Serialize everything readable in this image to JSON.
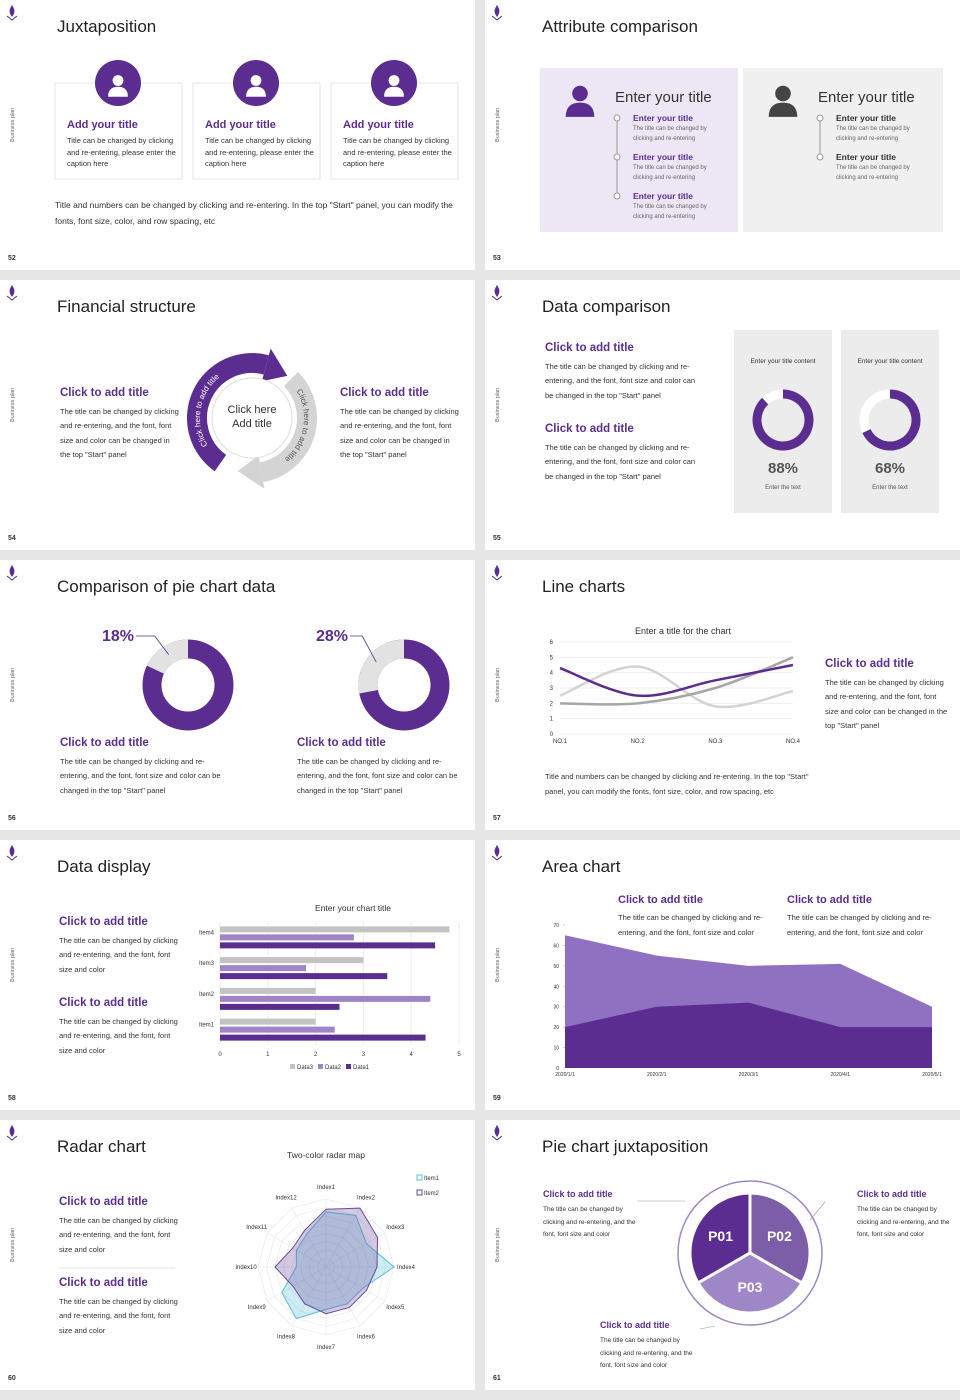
{
  "side_label": "Business plan",
  "slides": [
    {
      "number": "52",
      "title": "Juxtaposition",
      "cards": [
        {
          "title": "Add your title",
          "text": "Title can be changed by clicking and re-entering, please enter the caption here"
        },
        {
          "title": "Add your title",
          "text": "Title can be changed by clicking and re-entering, please enter the caption here"
        },
        {
          "title": "Add your title",
          "text": "Title can be changed by clicking and re-entering, please enter the caption here"
        }
      ],
      "caption": "Title and numbers can be changed by clicking and re-entering. In the top \"Start\" panel, you can modify the fonts, font size, color, and row spacing, etc"
    },
    {
      "number": "53",
      "title": "Attribute comparison",
      "panels": [
        {
          "heading": "Enter your title",
          "items": [
            {
              "title": "Enter your title",
              "text": "The title can be changed by clicking and re-entering"
            },
            {
              "title": "Enter your title",
              "text": "The title can be changed by clicking and re-entering"
            },
            {
              "title": "Enter your title",
              "text": "The title can be changed by clicking and re-entering"
            }
          ]
        },
        {
          "heading": "Enter your title",
          "items": [
            {
              "title": "Enter your title",
              "text": "The title can be changed by clicking and re-entering"
            },
            {
              "title": "Enter your title",
              "text": "The title can be changed by clicking and re-entering"
            }
          ]
        }
      ]
    },
    {
      "number": "54",
      "title": "Financial structure",
      "left": {
        "title": "Click to add title",
        "text": "The title can be changed by clicking and re-entering, and the font, font size and color can be changed in the top \"Start\" panel"
      },
      "right": {
        "title": "Click to add title",
        "text": "The title can be changed by clicking and re-entering, and the font, font size and color can be changed in the top \"Start\" panel"
      },
      "center": [
        "Click here",
        "Add title"
      ],
      "arrow_labels": [
        "Click here to add title",
        "Click here to add title"
      ]
    },
    {
      "number": "55",
      "title": "Data comparison",
      "blocks": [
        {
          "title": "Click to add title",
          "text": "The title can be changed by clicking and re-entering, and the font, font size and color can be changed in the top \"Start\" panel"
        },
        {
          "title": "Click to add title",
          "text": "The title can be changed by clicking and re-entering, and the font, font size and color can be changed in the top \"Start\" panel"
        }
      ],
      "cards": [
        {
          "heading": "Enter your title content",
          "value": 88,
          "value_label": "88%",
          "caption": "Enter the text"
        },
        {
          "heading": "Enter your title content",
          "value": 68,
          "value_label": "68%",
          "caption": "Enter the text"
        }
      ]
    },
    {
      "number": "56",
      "title": "Comparison of pie chart data",
      "pies": [
        {
          "value": 18,
          "value_label": "18%",
          "title": "Click to add title",
          "text": "The title can be changed by clicking and re-entering, and the font, font size and color can be changed in the top \"Start\" panel"
        },
        {
          "value": 28,
          "value_label": "28%",
          "title": "Click to add title",
          "text": "The title can be changed by clicking and re-entering, and the font, font size and color can be changed in the top \"Start\" panel"
        }
      ]
    },
    {
      "number": "57",
      "title": "Line charts",
      "chart": {
        "type": "line",
        "title": "Enter a title for the chart",
        "categories": [
          "NO.1",
          "NO.2",
          "NO.3",
          "NO.4"
        ],
        "series": [
          {
            "color": "#d3d3d3",
            "values": [
              2.5,
              4.4,
              1.8,
              2.8
            ]
          },
          {
            "color": "#a6a6a6",
            "values": [
              2,
              2,
              3,
              5
            ]
          },
          {
            "color": "#5b2d90",
            "values": [
              4.3,
              2.5,
              3.5,
              4.5
            ]
          }
        ],
        "ylim": [
          0,
          6
        ],
        "yticks": [
          0,
          1,
          2,
          3,
          4,
          5,
          6
        ],
        "grid": true
      },
      "block": {
        "title": "Click to add title",
        "text": "The title can be changed by clicking and re-entering, and the font, font size and color can be changed in the top \"Start\" panel"
      },
      "caption": "Title and numbers can be changed by clicking and re-entering. In the top \"Start\" panel, you can modify the fonts, font size, color, and row spacing, etc"
    },
    {
      "number": "58",
      "title": "Data display",
      "blocks": [
        {
          "title": "Click to add title",
          "text": "The title can be changed by clicking and re-entering, and the font, font size and color"
        },
        {
          "title": "Click to add title",
          "text": "The title can be changed by clicking and re-entering, and the font, font size and color"
        }
      ],
      "chart": {
        "type": "hbar",
        "title": "Enter your chart title",
        "categories": [
          "Item1",
          "Item2",
          "Item3",
          "Item4"
        ],
        "series": [
          {
            "name": "Data3",
            "color": "#c3c3c3",
            "values": [
              2,
              2,
              3,
              4.8
            ]
          },
          {
            "name": "Data2",
            "color": "#a084c8",
            "values": [
              2.4,
              4.4,
              1.8,
              2.8
            ]
          },
          {
            "name": "Data1",
            "color": "#5b2d90",
            "values": [
              4.3,
              2.5,
              3.5,
              4.5
            ]
          }
        ],
        "xlim": [
          0,
          5
        ],
        "xticks": [
          0,
          1,
          2,
          3,
          4,
          5
        ],
        "grid": true,
        "legend": "bottom"
      }
    },
    {
      "number": "59",
      "title": "Area chart",
      "blocks": [
        {
          "title": "Click to add title",
          "text": "The title can be changed by clicking and re-entering, and the font, font size and color"
        },
        {
          "title": "Click to add title",
          "text": "The title can be changed by clicking and re-entering, and the font, font size and color"
        }
      ],
      "chart": {
        "type": "area",
        "categories": [
          "2020/1/1",
          "2020/2/1",
          "2020/3/1",
          "2020/4/1",
          "2020/5/1"
        ],
        "series": [
          {
            "color": "#9070c0",
            "values": [
              65,
              55,
              50,
              51,
              30
            ]
          },
          {
            "color": "#5b2d90",
            "values": [
              20,
              30,
              32,
              20,
              20
            ]
          }
        ],
        "ylim": [
          0,
          70
        ],
        "yticks": [
          0,
          10,
          20,
          30,
          40,
          50,
          60,
          70
        ]
      }
    },
    {
      "number": "60",
      "title": "Radar chart",
      "blocks": [
        {
          "title": "Click to add title",
          "text": "The title can be changed by clicking and re-entering, and the font, font size and color"
        },
        {
          "title": "Click to add title",
          "text": "The title can be changed by clicking and re-entering, and the font, font size and color"
        }
      ],
      "chart": {
        "type": "radar",
        "title": "Two-color radar map",
        "categories": [
          "Index1",
          "Index2",
          "Index3",
          "Index4",
          "Index5",
          "Index6",
          "Index7",
          "Index8",
          "Index9",
          "Index10",
          "Index11",
          "Index12"
        ],
        "series": [
          {
            "name": "Item1",
            "color": "#5bc0d8",
            "values": [
              6.5,
              7,
              5.5,
              8,
              5,
              5,
              5,
              7,
              6,
              3.5,
              4,
              4.5
            ]
          },
          {
            "name": "Item2",
            "color": "#6a4a9c",
            "values": [
              6.8,
              8,
              7,
              6,
              5.5,
              5.5,
              5.5,
              5,
              4.5,
              6,
              4.5,
              5
            ]
          }
        ],
        "rlim": [
          0,
          8
        ],
        "legend": "upper right"
      }
    },
    {
      "number": "61",
      "title": "Pie chart juxtaposition",
      "segments": [
        "P01",
        "P02",
        "P03"
      ],
      "blocks": [
        {
          "title": "Click to add title",
          "text": "The title can be changed by clicking and re-entering, and the font, font size and color"
        },
        {
          "title": "Click to add title",
          "text": "The title can be changed by clicking and re-entering, and the font, font size and color"
        },
        {
          "title": "Click to add title",
          "text": "The title can be changed by clicking and re-entering, and the font, font size and color"
        }
      ]
    }
  ]
}
